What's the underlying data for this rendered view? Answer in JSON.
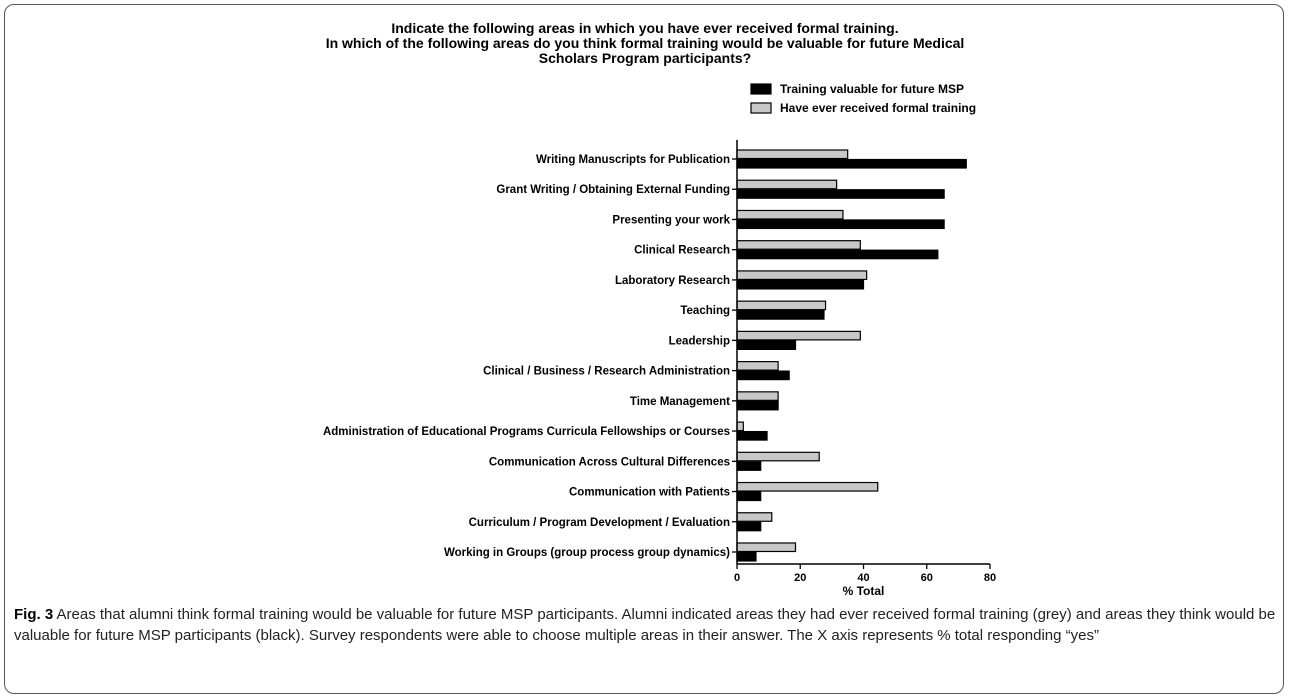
{
  "chart_data": {
    "type": "bar",
    "orientation": "horizontal",
    "title_lines": [
      "Indicate the following areas in which you have ever received formal training.",
      "In which of the following areas do you think formal training would be valuable for future Medical",
      "Scholars Program participants?"
    ],
    "categories": [
      "Writing Manuscripts for Publication",
      "Grant Writing / Obtaining External Funding",
      "Presenting your work",
      "Clinical Research",
      "Laboratory Research",
      "Teaching",
      "Leadership",
      "Clinical / Business / Research Administration",
      "Time Management",
      "Administration of Educational Programs Curricula Fellowships or Courses",
      "Communication Across Cultural Differences",
      "Communication with Patients",
      "Curriculum / Program Development / Evaluation",
      "Working in Groups (group process group dynamics)"
    ],
    "series": [
      {
        "name": "Have ever received formal training",
        "color": "#c8c8c8",
        "values": [
          35,
          31.5,
          33.5,
          39,
          41,
          28,
          39,
          13,
          13,
          2,
          26,
          44.5,
          11,
          18.5
        ]
      },
      {
        "name": "Training valuable for future MSP",
        "color": "#000000",
        "values": [
          72.5,
          65.5,
          65.5,
          63.5,
          40,
          27.5,
          18.5,
          16.5,
          13,
          9.5,
          7.5,
          7.5,
          7.5,
          6
        ]
      }
    ],
    "legend_order": [
      "Training valuable for future MSP",
      "Have ever received formal training"
    ],
    "legend_position": "top-right",
    "xlabel": "% Total",
    "xlim": [
      0,
      80
    ],
    "xticks": [
      0,
      20,
      40,
      60,
      80
    ],
    "grid": false
  },
  "caption": {
    "fig_label": "Fig. 3",
    "text": "Areas that alumni think formal training would be valuable for future MSP participants. Alumni indicated areas they had ever received formal training (grey) and areas they think would be valuable for future MSP participants (black). Survey respondents were able to choose multiple areas in their answer. The X axis represents % total responding “yes”"
  }
}
